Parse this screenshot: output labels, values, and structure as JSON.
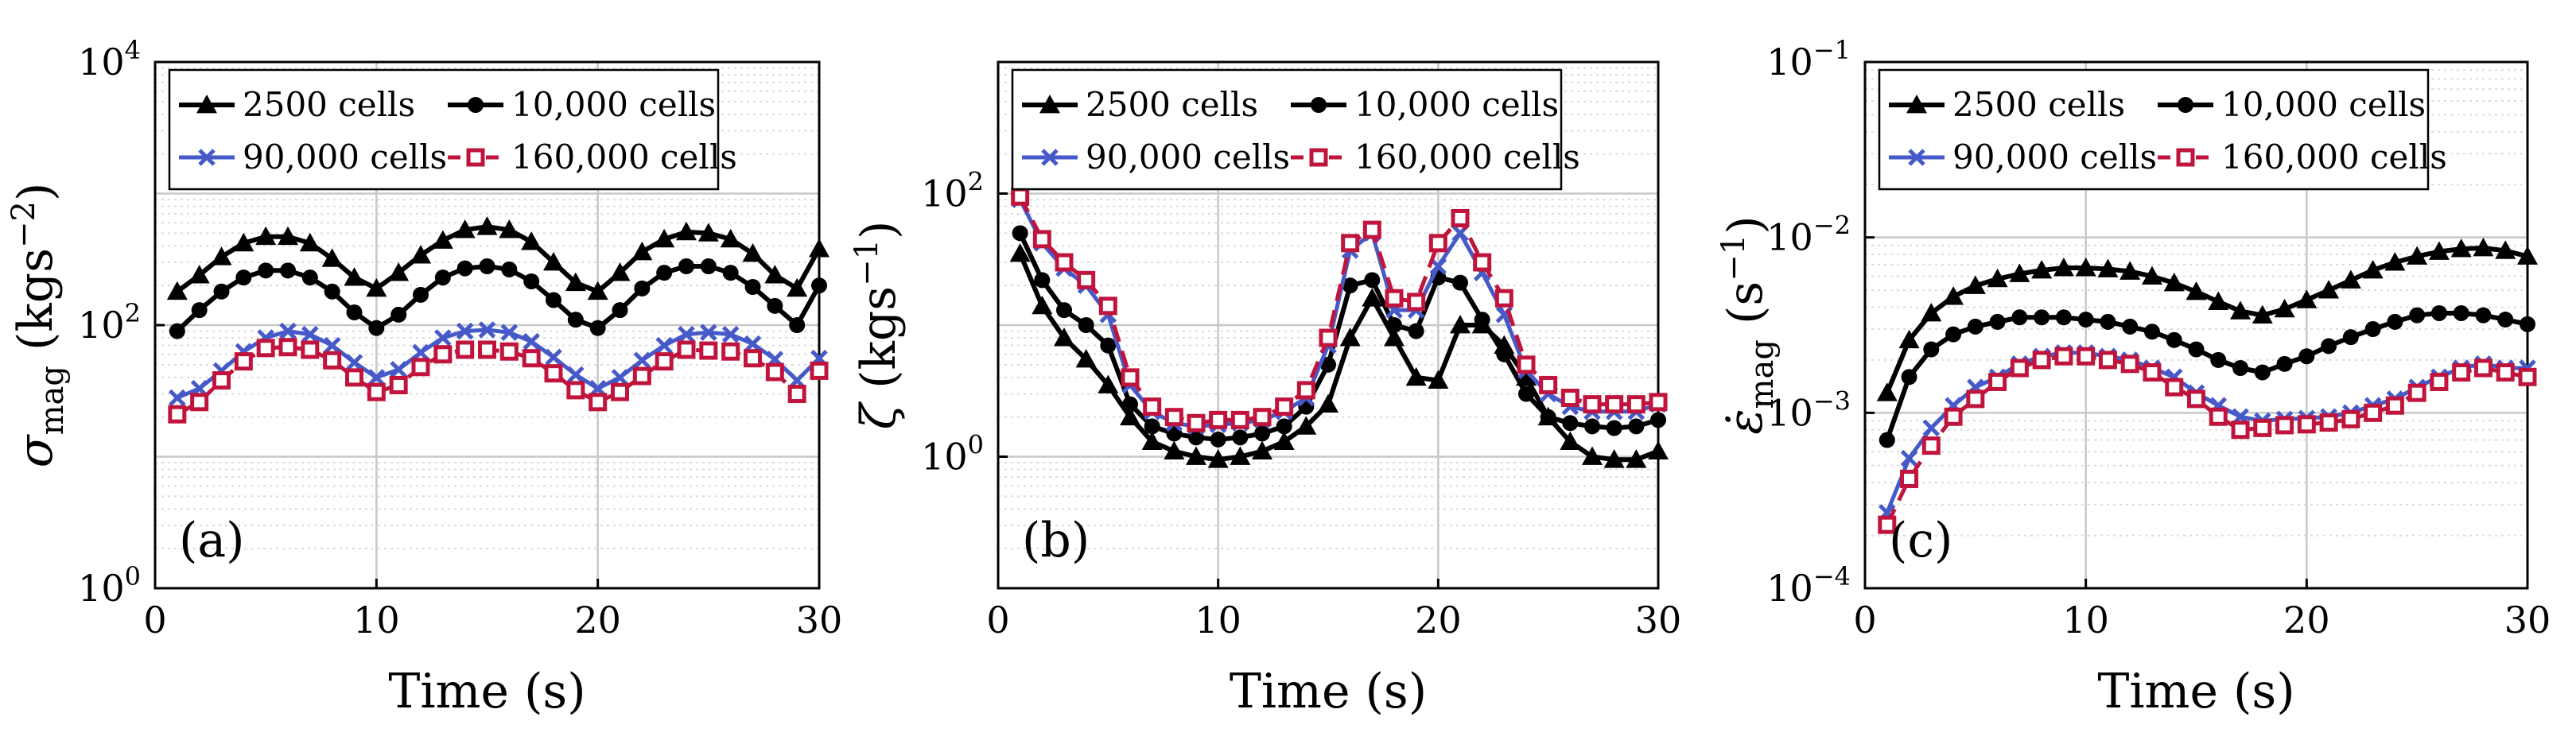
{
  "colors": {
    "black": "#000000",
    "blue": "#4659c9",
    "red": "#c0143c",
    "grid_minor": "#dcdcdc",
    "grid_major": "#c8c8c8"
  },
  "legend": [
    "2500 cells",
    "10,000 cells",
    "90,000 cells",
    "160,000 cells"
  ],
  "chart_data": [
    {
      "type": "line",
      "panel_label": "(a)",
      "xlabel": "Time (s)",
      "ylabel": "σmag (kgs−2)",
      "ylabel_parts": {
        "symbol": "σ",
        "sub": "mag",
        "unit_open": "(kgs",
        "unit_exp": "−2",
        "unit_close": ")"
      },
      "yscale": "log",
      "xlim": [
        0,
        30
      ],
      "ylim": [
        1,
        10000
      ],
      "xticks": [
        0,
        10,
        20,
        30
      ],
      "xtick_labels": [
        "0",
        "10",
        "20",
        "30"
      ],
      "yticks": [
        1,
        100,
        10000
      ],
      "ytick_labels": [
        {
          "base": "10",
          "exp": "0"
        },
        {
          "base": "10",
          "exp": "2"
        },
        {
          "base": "10",
          "exp": "4"
        }
      ],
      "x": [
        1,
        2,
        3,
        4,
        5,
        6,
        7,
        8,
        9,
        10,
        11,
        12,
        13,
        14,
        15,
        16,
        17,
        18,
        19,
        20,
        21,
        22,
        23,
        24,
        25,
        26,
        27,
        28,
        29,
        30
      ],
      "series": [
        {
          "name": "2500 cells",
          "values": [
            180,
            240,
            330,
            420,
            470,
            470,
            420,
            320,
            230,
            190,
            250,
            340,
            440,
            530,
            560,
            530,
            430,
            300,
            210,
            180,
            250,
            360,
            450,
            510,
            500,
            450,
            350,
            240,
            190,
            380
          ]
        },
        {
          "name": "10,000 cells",
          "values": [
            90,
            130,
            180,
            230,
            260,
            260,
            230,
            180,
            125,
            95,
            120,
            170,
            230,
            270,
            280,
            265,
            215,
            155,
            110,
            95,
            130,
            190,
            250,
            280,
            280,
            250,
            195,
            140,
            100,
            200
          ]
        },
        {
          "name": "90,000 cells",
          "values": [
            28,
            33,
            45,
            63,
            80,
            90,
            85,
            70,
            52,
            40,
            46,
            62,
            80,
            90,
            92,
            88,
            75,
            57,
            42,
            33,
            40,
            54,
            70,
            85,
            88,
            85,
            72,
            55,
            38,
            56
          ]
        },
        {
          "name": "160,000 cells",
          "values": [
            21,
            26,
            38,
            53,
            67,
            68,
            65,
            54,
            40,
            31,
            35,
            48,
            60,
            65,
            65,
            63,
            56,
            43,
            32,
            26,
            31,
            41,
            53,
            65,
            64,
            63,
            56,
            44,
            30,
            45
          ]
        }
      ]
    },
    {
      "type": "line",
      "panel_label": "(b)",
      "xlabel": "Time (s)",
      "ylabel": "ζ (kgs−1)",
      "ylabel_parts": {
        "symbol": "ζ",
        "sub": "",
        "unit_open": "(kgs",
        "unit_exp": "−1",
        "unit_close": ")"
      },
      "yscale": "log",
      "xlim": [
        0,
        30
      ],
      "ylim": [
        0.1,
        1000
      ],
      "xticks": [
        0,
        10,
        20,
        30
      ],
      "xtick_labels": [
        "0",
        "10",
        "20",
        "30"
      ],
      "yticks": [
        1,
        100
      ],
      "ytick_labels": [
        {
          "base": "10",
          "exp": "0"
        },
        {
          "base": "10",
          "exp": "2"
        }
      ],
      "x": [
        1,
        2,
        3,
        4,
        5,
        6,
        7,
        8,
        9,
        10,
        11,
        12,
        13,
        14,
        15,
        16,
        17,
        18,
        19,
        20,
        21,
        22,
        23,
        24,
        25,
        26,
        27,
        28,
        29,
        30
      ],
      "series": [
        {
          "name": "2500 cells",
          "values": [
            35,
            14,
            8,
            5.5,
            3.5,
            2,
            1.3,
            1.1,
            1.0,
            0.95,
            1.0,
            1.1,
            1.3,
            1.7,
            2.5,
            8,
            16,
            8,
            4,
            3.8,
            10,
            10,
            7,
            4,
            2,
            1.3,
            1.0,
            0.95,
            0.95,
            1.1
          ]
        },
        {
          "name": "10,000 cells",
          "values": [
            50,
            22,
            13,
            10,
            7,
            2.5,
            1.7,
            1.5,
            1.4,
            1.35,
            1.4,
            1.5,
            1.7,
            2.4,
            5,
            20,
            22,
            10,
            9,
            23,
            21,
            11,
            6,
            3,
            2,
            1.8,
            1.7,
            1.65,
            1.7,
            1.9
          ]
        },
        {
          "name": "90,000 cells",
          "values": [
            90,
            42,
            27,
            20,
            12,
            3.5,
            2.2,
            1.8,
            1.7,
            1.75,
            1.8,
            1.9,
            2.2,
            2.8,
            7,
            37,
            50,
            13,
            13,
            28,
            50,
            25,
            12,
            4.5,
            3,
            2.4,
            2.2,
            2.2,
            2.2,
            2.5
          ]
        },
        {
          "name": "160,000 cells",
          "values": [
            95,
            45,
            30,
            22,
            14,
            4,
            2.4,
            2,
            1.8,
            1.9,
            1.9,
            2,
            2.4,
            3.2,
            8,
            42,
            53,
            16,
            15,
            42,
            65,
            30,
            16,
            5,
            3.5,
            2.8,
            2.5,
            2.5,
            2.5,
            2.6
          ]
        }
      ]
    },
    {
      "type": "line",
      "panel_label": "(c)",
      "xlabel": "Time (s)",
      "ylabel": "ε̇mag (s−1)",
      "ylabel_parts": {
        "symbol": "ε̇",
        "sub": "mag",
        "unit_open": "(s",
        "unit_exp": "−1",
        "unit_close": ")"
      },
      "yscale": "log",
      "xlim": [
        0,
        30
      ],
      "ylim": [
        0.0001,
        0.1
      ],
      "xticks": [
        0,
        10,
        20,
        30
      ],
      "xtick_labels": [
        "0",
        "10",
        "20",
        "30"
      ],
      "yticks": [
        0.0001,
        0.001,
        0.01,
        0.1
      ],
      "ytick_labels": [
        {
          "base": "10",
          "exp": "−4"
        },
        {
          "base": "10",
          "exp": "−3"
        },
        {
          "base": "10",
          "exp": "−2"
        },
        {
          "base": "10",
          "exp": "−1"
        }
      ],
      "x": [
        1,
        2,
        3,
        4,
        5,
        6,
        7,
        8,
        9,
        10,
        11,
        12,
        13,
        14,
        15,
        16,
        17,
        18,
        19,
        20,
        21,
        22,
        23,
        24,
        25,
        26,
        27,
        28,
        29,
        30
      ],
      "series": [
        {
          "name": "2500 cells",
          "values": [
            0.0013,
            0.0026,
            0.0037,
            0.0046,
            0.0053,
            0.0058,
            0.0062,
            0.0065,
            0.0067,
            0.0067,
            0.0066,
            0.0064,
            0.006,
            0.0055,
            0.0049,
            0.0043,
            0.0038,
            0.0036,
            0.0039,
            0.0044,
            0.005,
            0.0057,
            0.0065,
            0.0072,
            0.0078,
            0.0083,
            0.0086,
            0.0087,
            0.0084,
            0.0078
          ]
        },
        {
          "name": "10,000 cells",
          "values": [
            0.0007,
            0.0016,
            0.0023,
            0.0028,
            0.0031,
            0.0033,
            0.0035,
            0.0035,
            0.0035,
            0.0034,
            0.0033,
            0.0031,
            0.0029,
            0.0026,
            0.0023,
            0.002,
            0.0018,
            0.0017,
            0.0019,
            0.0021,
            0.0024,
            0.0027,
            0.003,
            0.0033,
            0.0036,
            0.0037,
            0.0037,
            0.0036,
            0.0034,
            0.0032
          ]
        },
        {
          "name": "90,000 cells",
          "values": [
            0.00027,
            0.00055,
            0.00082,
            0.0011,
            0.0014,
            0.0016,
            0.0019,
            0.0021,
            0.0022,
            0.0022,
            0.0021,
            0.002,
            0.0018,
            0.0016,
            0.0013,
            0.0011,
            0.00095,
            0.0009,
            0.00092,
            0.00093,
            0.00095,
            0.001,
            0.0011,
            0.0012,
            0.0014,
            0.0016,
            0.0018,
            0.0019,
            0.0018,
            0.0018
          ]
        },
        {
          "name": "160,000 cells",
          "values": [
            0.00023,
            0.00042,
            0.00065,
            0.00095,
            0.0012,
            0.0015,
            0.0018,
            0.002,
            0.0021,
            0.0021,
            0.002,
            0.0019,
            0.0017,
            0.0014,
            0.0012,
            0.00095,
            0.0008,
            0.00082,
            0.00085,
            0.00086,
            0.00088,
            0.00092,
            0.001,
            0.0011,
            0.0013,
            0.0015,
            0.0017,
            0.0018,
            0.0017,
            0.0016
          ]
        }
      ]
    }
  ]
}
